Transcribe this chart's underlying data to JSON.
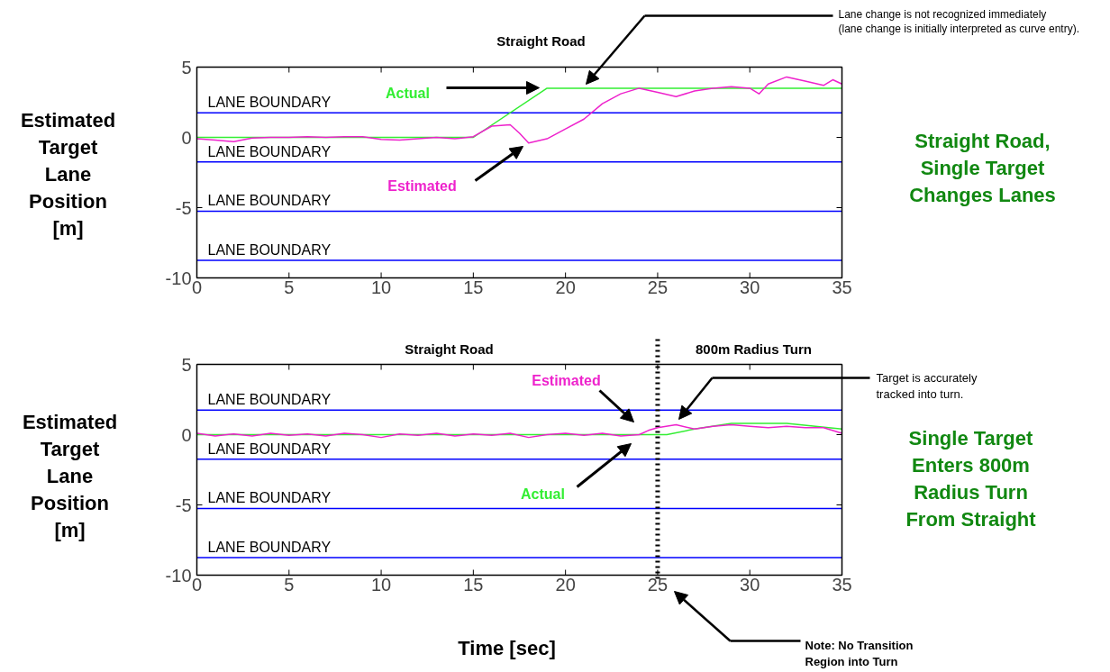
{
  "chart_data": [
    {
      "type": "line",
      "ylabel": "Estimated Target Lane Position [m]",
      "xlim": [
        0,
        35
      ],
      "ylim": [
        -10,
        5
      ],
      "xticks": [
        0,
        5,
        10,
        15,
        20,
        25,
        30,
        35
      ],
      "yticks": [
        -10,
        -5,
        0,
        5
      ],
      "annotations": [
        "Straight Road",
        "Lane change is not recognized immediately\n(lane change is initially interpreted as curve entry).",
        "Straight Road,\nSingle Target\nChanges Lanes"
      ],
      "ref_lines": [
        {
          "axis": "y",
          "value": 1.75,
          "label": "LANE BOUNDARY",
          "color": "#0000ff"
        },
        {
          "axis": "y",
          "value": -1.75,
          "label": "LANE BOUNDARY",
          "color": "#0000ff"
        },
        {
          "axis": "y",
          "value": -5.25,
          "label": "LANE BOUNDARY",
          "color": "#0000ff"
        },
        {
          "axis": "y",
          "value": -8.75,
          "label": "LANE BOUNDARY",
          "color": "#0000ff"
        }
      ],
      "series": [
        {
          "name": "Actual",
          "color": "#33ee33",
          "x": [
            0,
            15,
            19,
            35
          ],
          "values": [
            0,
            0,
            3.5,
            3.5
          ]
        },
        {
          "name": "Estimated",
          "color": "#ee22cc",
          "x": [
            0,
            1,
            2,
            3,
            4,
            5,
            6,
            7,
            8,
            9,
            10,
            11,
            12,
            13,
            14,
            15,
            16,
            17,
            17.5,
            18,
            19,
            20,
            21,
            22,
            23,
            24,
            25,
            26,
            27,
            28,
            29,
            30,
            30.5,
            31,
            32,
            33,
            34,
            34.5,
            35
          ],
          "values": [
            -0.1,
            -0.2,
            -0.3,
            -0.05,
            0,
            0,
            0.05,
            0,
            0.05,
            0.05,
            -0.15,
            -0.2,
            -0.1,
            0,
            -0.1,
            0.05,
            0.8,
            0.9,
            0.3,
            -0.4,
            -0.1,
            0.6,
            1.3,
            2.4,
            3.1,
            3.5,
            3.2,
            2.9,
            3.3,
            3.5,
            3.6,
            3.5,
            3.1,
            3.8,
            4.3,
            4.0,
            3.7,
            4.1,
            3.8
          ]
        }
      ]
    },
    {
      "type": "line",
      "xlabel": "Time [sec]",
      "ylabel": "Estimated Target Lane Position [m]",
      "xlim": [
        0,
        35
      ],
      "ylim": [
        -10,
        5
      ],
      "xticks": [
        0,
        5,
        10,
        15,
        20,
        25,
        30,
        35
      ],
      "yticks": [
        -10,
        -5,
        0,
        5
      ],
      "annotations": [
        "Straight Road",
        "800m  Radius Turn",
        "Target is accurately\ntracked into turn.",
        "Single Target\nEnters 800m\nRadius Turn\nFrom Straight",
        "Note: No Transition\nRegion into Turn"
      ],
      "ref_lines": [
        {
          "axis": "y",
          "value": 1.75,
          "label": "LANE BOUNDARY",
          "color": "#0000ff"
        },
        {
          "axis": "y",
          "value": -1.75,
          "label": "LANE BOUNDARY",
          "color": "#0000ff"
        },
        {
          "axis": "y",
          "value": -5.25,
          "label": "LANE BOUNDARY",
          "color": "#0000ff"
        },
        {
          "axis": "y",
          "value": -8.75,
          "label": "LANE BOUNDARY",
          "color": "#0000ff"
        },
        {
          "axis": "x",
          "value": 25,
          "color": "#000000",
          "line_style": "dotted"
        }
      ],
      "series": [
        {
          "name": "Actual",
          "color": "#33ee33",
          "x": [
            0,
            25.5,
            27,
            29,
            32,
            35
          ],
          "values": [
            0,
            0,
            0.4,
            0.8,
            0.8,
            0.4
          ]
        },
        {
          "name": "Estimated",
          "color": "#ee22cc",
          "x": [
            0,
            1,
            2,
            3,
            4,
            5,
            6,
            7,
            8,
            9,
            10,
            11,
            12,
            13,
            14,
            15,
            16,
            17,
            18,
            19,
            20,
            21,
            22,
            23,
            24,
            24.5,
            25,
            26,
            27,
            28,
            29,
            30,
            31,
            32,
            33,
            34,
            35
          ],
          "values": [
            0.1,
            -0.1,
            0.05,
            -0.1,
            0.1,
            -0.05,
            0.05,
            -0.1,
            0.1,
            0,
            -0.2,
            0.05,
            -0.05,
            0.1,
            -0.1,
            0.05,
            -0.05,
            0.1,
            -0.2,
            0,
            0.1,
            -0.05,
            0.1,
            -0.1,
            0,
            0.3,
            0.5,
            0.7,
            0.4,
            0.6,
            0.7,
            0.6,
            0.5,
            0.6,
            0.5,
            0.5,
            0.1
          ]
        }
      ]
    }
  ]
}
